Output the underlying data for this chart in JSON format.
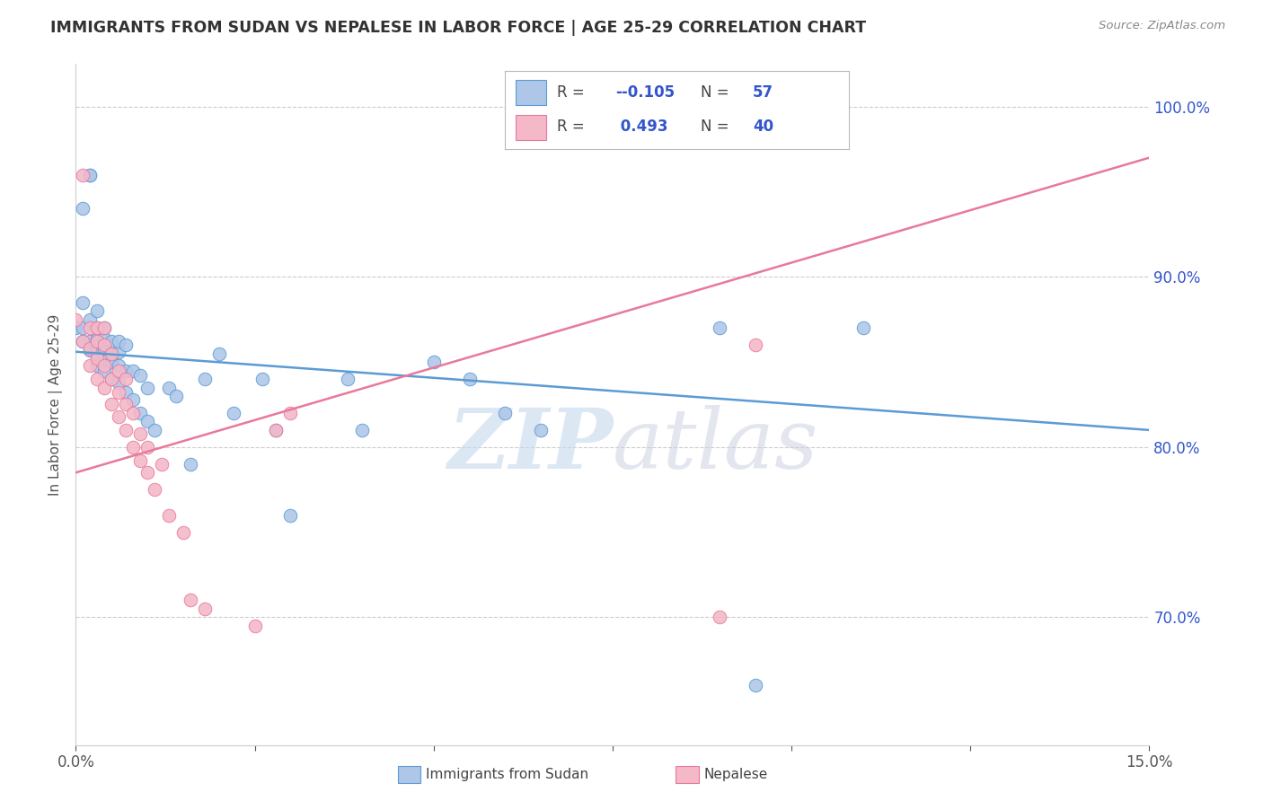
{
  "title": "IMMIGRANTS FROM SUDAN VS NEPALESE IN LABOR FORCE | AGE 25-29 CORRELATION CHART",
  "source": "Source: ZipAtlas.com",
  "ylabel": "In Labor Force | Age 25-29",
  "ytick_values": [
    1.0,
    0.9,
    0.8,
    0.7
  ],
  "xlim": [
    0.0,
    0.15
  ],
  "ylim": [
    0.625,
    1.025
  ],
  "sudan_x": [
    0.0,
    0.001,
    0.001,
    0.001,
    0.001,
    0.002,
    0.002,
    0.002,
    0.002,
    0.002,
    0.003,
    0.003,
    0.003,
    0.003,
    0.003,
    0.003,
    0.004,
    0.004,
    0.004,
    0.004,
    0.004,
    0.005,
    0.005,
    0.005,
    0.005,
    0.006,
    0.006,
    0.006,
    0.006,
    0.007,
    0.007,
    0.007,
    0.008,
    0.008,
    0.009,
    0.009,
    0.01,
    0.01,
    0.011,
    0.013,
    0.014,
    0.016,
    0.018,
    0.02,
    0.022,
    0.026,
    0.028,
    0.03,
    0.038,
    0.04,
    0.05,
    0.055,
    0.06,
    0.065,
    0.09,
    0.095,
    0.11
  ],
  "sudan_y": [
    0.87,
    0.87,
    0.862,
    0.885,
    0.94,
    0.857,
    0.862,
    0.875,
    0.96,
    0.96,
    0.848,
    0.855,
    0.858,
    0.863,
    0.87,
    0.88,
    0.845,
    0.852,
    0.858,
    0.864,
    0.87,
    0.84,
    0.85,
    0.856,
    0.862,
    0.838,
    0.848,
    0.856,
    0.862,
    0.832,
    0.845,
    0.86,
    0.828,
    0.845,
    0.82,
    0.842,
    0.815,
    0.835,
    0.81,
    0.835,
    0.83,
    0.79,
    0.84,
    0.855,
    0.82,
    0.84,
    0.81,
    0.76,
    0.84,
    0.81,
    0.85,
    0.84,
    0.82,
    0.81,
    0.87,
    0.66,
    0.87
  ],
  "nepal_x": [
    0.0,
    0.001,
    0.001,
    0.002,
    0.002,
    0.002,
    0.003,
    0.003,
    0.003,
    0.003,
    0.004,
    0.004,
    0.004,
    0.004,
    0.005,
    0.005,
    0.005,
    0.006,
    0.006,
    0.006,
    0.007,
    0.007,
    0.007,
    0.008,
    0.008,
    0.009,
    0.009,
    0.01,
    0.01,
    0.011,
    0.012,
    0.013,
    0.015,
    0.016,
    0.018,
    0.025,
    0.028,
    0.03,
    0.09,
    0.095
  ],
  "nepal_y": [
    0.875,
    0.862,
    0.96,
    0.848,
    0.858,
    0.87,
    0.84,
    0.852,
    0.862,
    0.87,
    0.835,
    0.848,
    0.86,
    0.87,
    0.825,
    0.84,
    0.855,
    0.818,
    0.832,
    0.845,
    0.81,
    0.825,
    0.84,
    0.8,
    0.82,
    0.792,
    0.808,
    0.785,
    0.8,
    0.775,
    0.79,
    0.76,
    0.75,
    0.71,
    0.705,
    0.695,
    0.81,
    0.82,
    0.7,
    0.86
  ],
  "sudan_line_x": [
    0.0,
    0.15
  ],
  "sudan_line_y": [
    0.856,
    0.81
  ],
  "nepal_line_x": [
    0.0,
    0.15
  ],
  "nepal_line_y": [
    0.785,
    0.97
  ],
  "blue_color": "#5b9bd5",
  "pink_color": "#e8799a",
  "blue_fill": "#aec6e8",
  "pink_fill": "#f4b8c8",
  "watermark_zip": "ZIP",
  "watermark_atlas": "atlas",
  "grid_color": "#cccccc",
  "title_color": "#333333",
  "axis_label_color": "#3355cc",
  "source_color": "#888888",
  "legend_blue_r": "-0.105",
  "legend_blue_n": "57",
  "legend_pink_r": "0.493",
  "legend_pink_n": "40"
}
